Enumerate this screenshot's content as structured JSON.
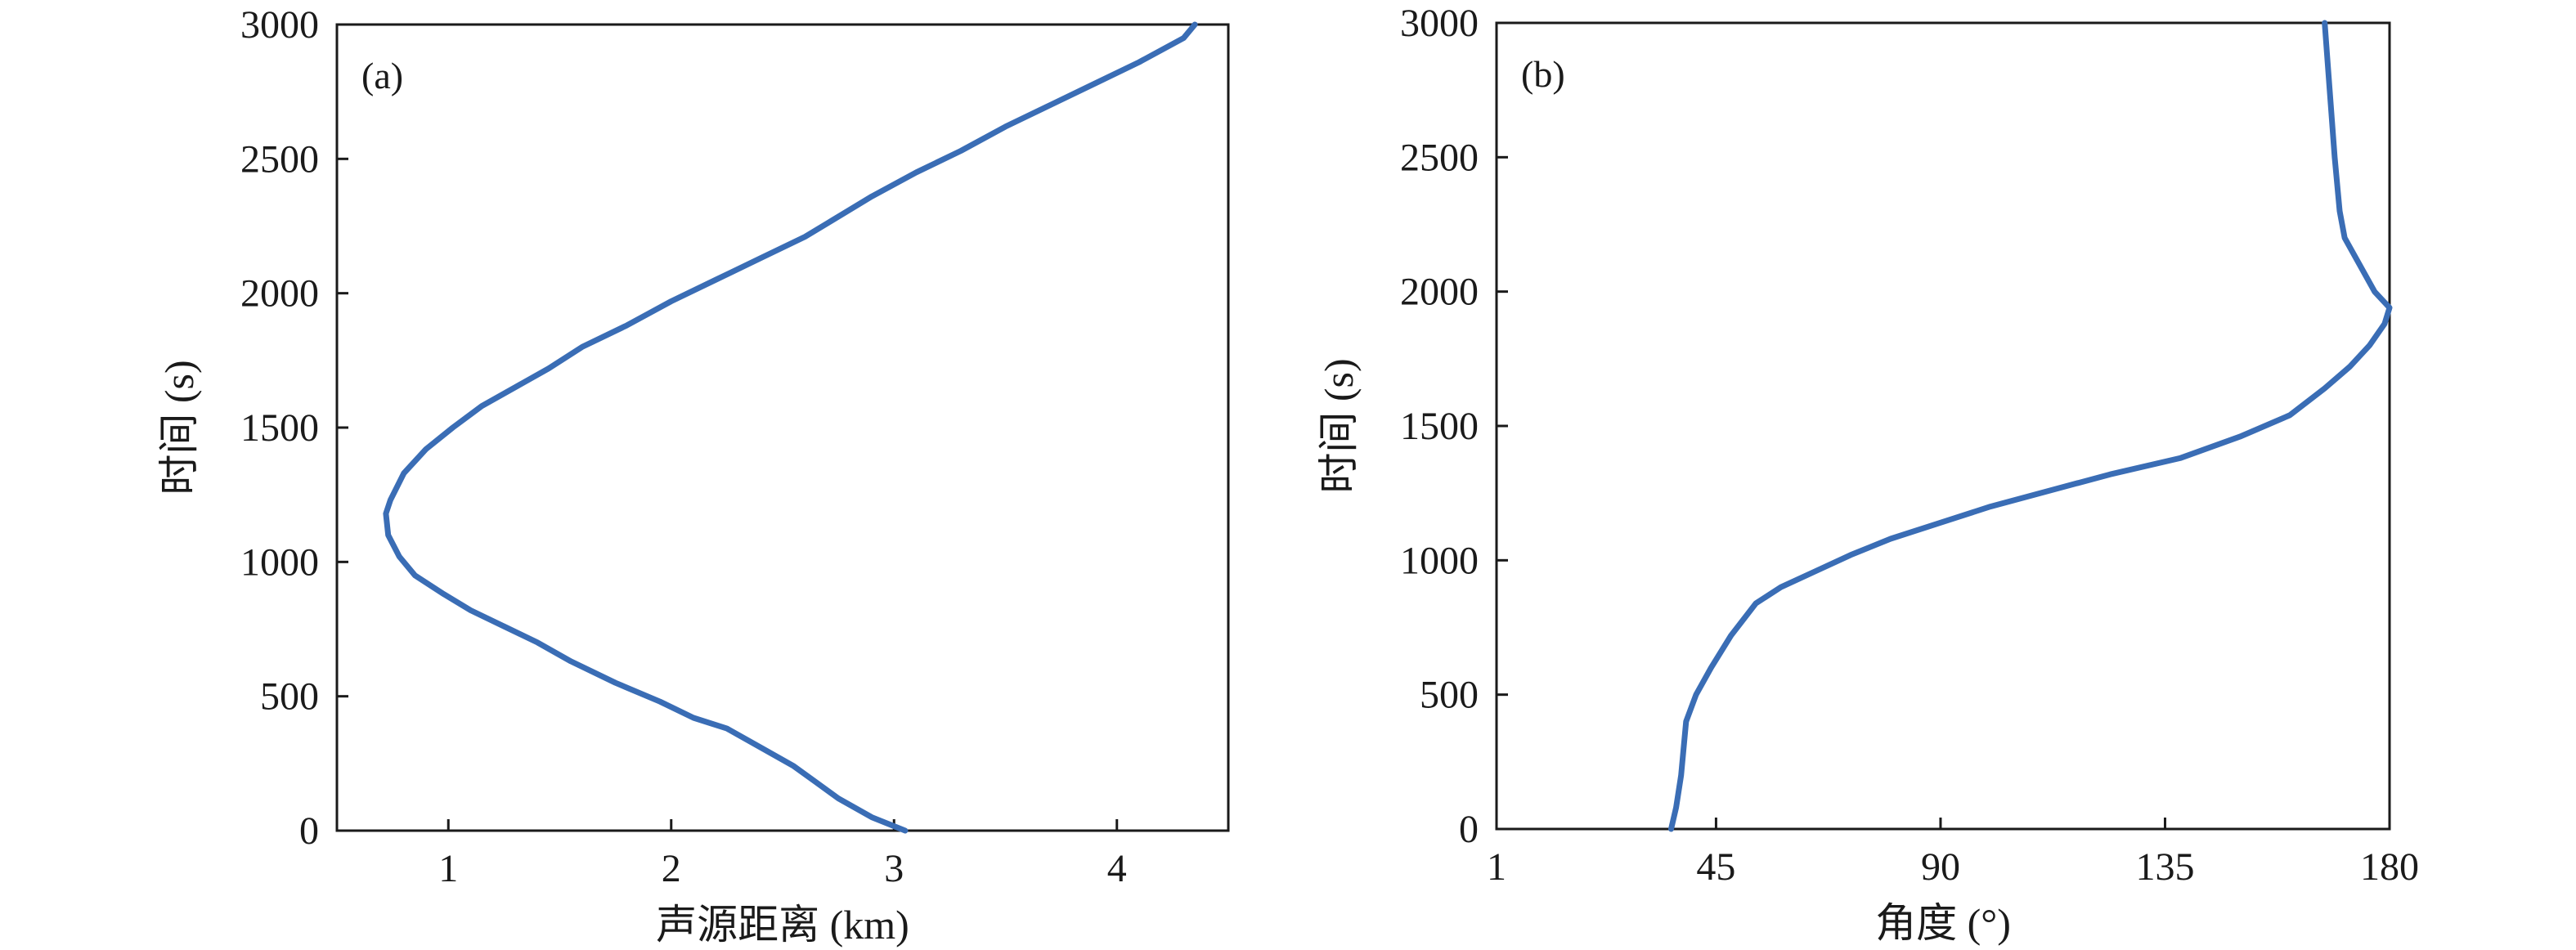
{
  "chart_data": [
    {
      "type": "line",
      "panel_label": "(a)",
      "xlabel": "声源距离 (km)",
      "ylabel": "时间 (s)",
      "xlim": [
        0.5,
        4.5
      ],
      "ylim": [
        0,
        3000
      ],
      "xticks": [
        1,
        2,
        3,
        4
      ],
      "yticks": [
        0,
        500,
        1000,
        1500,
        2000,
        2500,
        3000
      ],
      "grid": false,
      "color": "#3a6db5",
      "series": [
        {
          "x": [
            3.05,
            2.9,
            2.75,
            2.65,
            2.55,
            2.4,
            2.25,
            2.1,
            1.95,
            1.75,
            1.55,
            1.4,
            1.25,
            1.1,
            0.98,
            0.85,
            0.78,
            0.73,
            0.72,
            0.74,
            0.8,
            0.9,
            1.02,
            1.15,
            1.3,
            1.45,
            1.6,
            1.8,
            2.0,
            2.2,
            2.4,
            2.6,
            2.7,
            2.9,
            3.1,
            3.3,
            3.5,
            3.7,
            3.9,
            4.1,
            4.3,
            4.35
          ],
          "y": [
            0,
            50,
            120,
            180,
            240,
            310,
            380,
            420,
            480,
            550,
            630,
            700,
            760,
            820,
            880,
            950,
            1020,
            1100,
            1180,
            1230,
            1330,
            1420,
            1500,
            1580,
            1650,
            1720,
            1800,
            1880,
            1970,
            2050,
            2130,
            2210,
            2260,
            2360,
            2450,
            2530,
            2620,
            2700,
            2780,
            2860,
            2950,
            3000
          ]
        }
      ]
    },
    {
      "type": "line",
      "panel_label": "(b)",
      "xlabel": "角度 (°)",
      "ylabel": "时间 (s)",
      "xlim": [
        1,
        180
      ],
      "ylim": [
        0,
        3000
      ],
      "xticks": [
        1,
        45,
        90,
        135,
        180
      ],
      "yticks": [
        0,
        500,
        1000,
        1500,
        2000,
        2500,
        3000
      ],
      "grid": false,
      "color": "#3a6db5",
      "series": [
        {
          "x": [
            36,
            37,
            38,
            39,
            41,
            44,
            48,
            53,
            58,
            65,
            72,
            80,
            90,
            100,
            112,
            124,
            138,
            150,
            160,
            167,
            172,
            176,
            179,
            180,
            177,
            174,
            171,
            170,
            169,
            168,
            167
          ],
          "y": [
            0,
            80,
            200,
            400,
            500,
            600,
            720,
            840,
            900,
            960,
            1020,
            1080,
            1140,
            1200,
            1260,
            1320,
            1380,
            1460,
            1540,
            1640,
            1720,
            1800,
            1880,
            1940,
            2000,
            2100,
            2200,
            2300,
            2500,
            2750,
            3000
          ]
        }
      ]
    }
  ]
}
